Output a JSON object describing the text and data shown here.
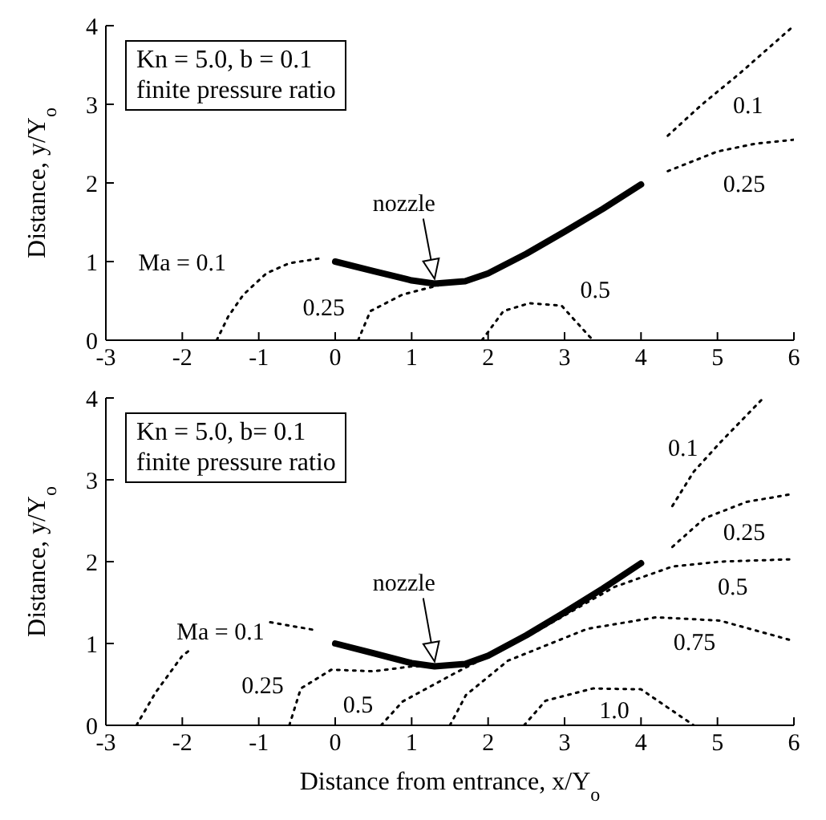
{
  "chart_data": [
    {
      "type": "line",
      "ylabel": "Distance, y/Y$_{o}$",
      "xlim": [
        -3,
        6
      ],
      "xticks": [
        -3,
        -2,
        -1,
        0,
        1,
        2,
        3,
        4,
        5,
        6
      ],
      "ylim": [
        0,
        4
      ],
      "yticks": [
        0,
        1,
        2,
        3,
        4
      ],
      "marker": "none",
      "annotations": [
        "Kn = 5.0, b = 0.1",
        "finite pressure ratio"
      ],
      "series": [
        {
          "name": "nozzle",
          "color": "#000000",
          "line_style": "solid",
          "x": [
            0,
            0.5,
            1,
            1.3,
            1.7,
            2,
            2.5,
            3,
            3.5,
            4
          ],
          "values": [
            1,
            0.88,
            0.76,
            0.72,
            0.75,
            0.85,
            1.1,
            1.38,
            1.67,
            1.98
          ]
        },
        {
          "name": "Ma = 0.1",
          "color": "#000000",
          "line_style": "dotted",
          "x": [
            -1.55,
            -1.4,
            -1.2,
            -0.9,
            -0.6,
            -0.2
          ],
          "values": [
            0,
            0.3,
            0.58,
            0.85,
            0.98,
            1.04
          ]
        },
        {
          "name": "0.25",
          "color": "#000000",
          "line_style": "dotted",
          "x": [
            0.3,
            0.46,
            0.88,
            1.36
          ],
          "values": [
            0,
            0.37,
            0.58,
            0.7
          ]
        },
        {
          "name": "0.5",
          "color": "#000000",
          "line_style": "dotted",
          "x": [
            1.92,
            2.2,
            2.54,
            2.96,
            3.37
          ],
          "values": [
            0,
            0.37,
            0.47,
            0.44,
            0
          ]
        },
        {
          "name": "0.1",
          "color": "#000000",
          "line_style": "dotted",
          "x": [
            4.35,
            4.8,
            5.3,
            6
          ],
          "values": [
            2.6,
            3.0,
            3.4,
            4.0
          ]
        },
        {
          "name": "0.25",
          "color": "#000000",
          "line_style": "dotted",
          "x": [
            4.35,
            5,
            5.5,
            6
          ],
          "values": [
            2.15,
            2.4,
            2.5,
            2.55
          ]
        }
      ]
    },
    {
      "type": "line",
      "ylabel": "Distance, y/Y$_{o}$",
      "xlabel": "Distance from entrance, x/Y$_{o}$",
      "xlim": [
        -3,
        6
      ],
      "xticks": [
        -3,
        -2,
        -1,
        0,
        1,
        2,
        3,
        4,
        5,
        6
      ],
      "ylim": [
        0,
        4
      ],
      "yticks": [
        0,
        1,
        2,
        3,
        4
      ],
      "marker": "none",
      "annotations": [
        "Kn = 5.0, b= 0.1",
        "finite pressure ratio"
      ],
      "series": [
        {
          "name": "nozzle",
          "color": "#000000",
          "line_style": "solid",
          "x": [
            0,
            0.5,
            1,
            1.3,
            1.7,
            2,
            2.5,
            3,
            3.5,
            4
          ],
          "values": [
            1,
            0.88,
            0.76,
            0.72,
            0.75,
            0.85,
            1.1,
            1.38,
            1.67,
            1.98
          ]
        },
        {
          "name": "Ma = 0.1",
          "color": "#000000",
          "line_style": "dotted",
          "x": [
            -2.6,
            -2.35,
            -2.0,
            -1.9,
            -1.3,
            -0.85,
            -0.3
          ],
          "values": [
            0,
            0.4,
            0.85,
            0.92,
            null,
            1.26,
            1.17
          ]
        },
        {
          "name": "0.25",
          "color": "#000000",
          "line_style": "dotted",
          "x": [
            -0.6,
            -0.45,
            -0.05,
            0.5,
            1.0,
            1.4
          ],
          "values": [
            0,
            0.45,
            0.68,
            0.66,
            0.72,
            0.72
          ]
        },
        {
          "name": "0.5",
          "color": "#000000",
          "line_style": "dotted",
          "x": [
            0.6,
            0.88,
            1.57,
            2.6,
            3.65,
            4.41,
            5.03,
            6
          ],
          "values": [
            0,
            0.29,
            0.64,
            1.13,
            1.69,
            1.94,
            2.0,
            2.03
          ]
        },
        {
          "name": "0.75",
          "color": "#000000",
          "line_style": "dotted",
          "x": [
            1.5,
            1.71,
            2.26,
            3.3,
            4.2,
            5.03,
            6
          ],
          "values": [
            0,
            0.37,
            0.79,
            1.18,
            1.32,
            1.28,
            1.03
          ]
        },
        {
          "name": "1.0",
          "color": "#000000",
          "line_style": "dotted",
          "x": [
            2.47,
            2.75,
            3.37,
            4.0,
            4.69
          ],
          "values": [
            0,
            0.3,
            0.45,
            0.44,
            0
          ]
        },
        {
          "name": "0.1",
          "color": "#000000",
          "line_style": "dotted",
          "x": [
            4.41,
            4.69,
            5.03,
            5.6
          ],
          "values": [
            2.68,
            3.1,
            3.45,
            4.0
          ]
        },
        {
          "name": "0.25",
          "color": "#000000",
          "line_style": "dotted",
          "x": [
            4.41,
            4.83,
            5.38,
            6
          ],
          "values": [
            2.18,
            2.53,
            2.73,
            2.83
          ]
        }
      ]
    }
  ]
}
